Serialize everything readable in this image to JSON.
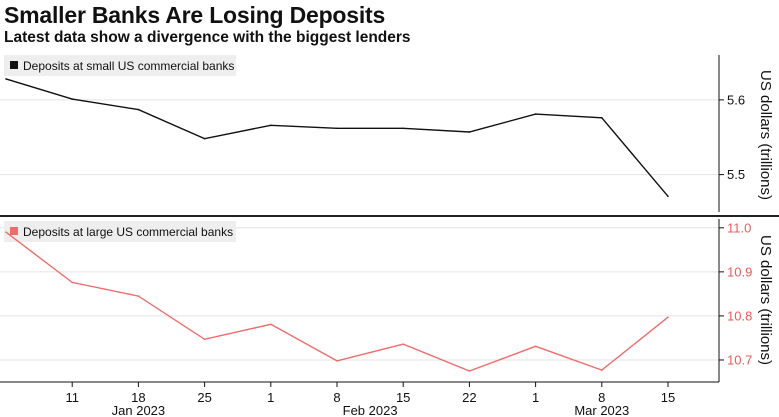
{
  "title": "Smaller Banks Are Losing Deposits",
  "subtitle": "Latest data show a divergence with the biggest lenders",
  "chart_data": [
    {
      "type": "line",
      "legend": "Deposits at small US commercial banks",
      "color": "#111111",
      "ylabel": "US dollars (trillions)",
      "ylim": [
        5.45,
        5.66
      ],
      "yticks": [
        "5.5",
        "5.6"
      ],
      "values": [
        5.628,
        5.601,
        5.587,
        5.548,
        5.566,
        5.562,
        5.562,
        5.557,
        5.581,
        5.576,
        5.471
      ]
    },
    {
      "type": "line",
      "legend": "Deposits at large US commercial banks",
      "color": "#ee6c6c",
      "ylabel": "US dollars (trillions)",
      "ylim": [
        10.65,
        11.02
      ],
      "yticks": [
        "10.7",
        "10.8",
        "10.9",
        "11.0"
      ],
      "values": [
        10.99,
        10.876,
        10.845,
        10.747,
        10.781,
        10.698,
        10.736,
        10.675,
        10.731,
        10.677,
        10.797
      ]
    }
  ],
  "x_ticks": [
    "11",
    "18",
    "25",
    "1",
    "8",
    "15",
    "22",
    "1",
    "8",
    "15"
  ],
  "months": [
    "Jan 2023",
    "Feb 2023",
    "Mar 2023"
  ]
}
